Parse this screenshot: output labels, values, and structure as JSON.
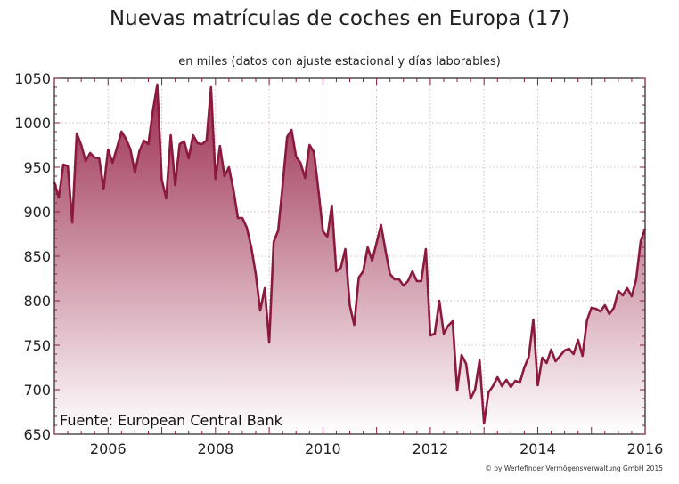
{
  "chart_data": {
    "type": "area",
    "title": "Nuevas matrículas de coches en Europa (17)",
    "subtitle": "en miles (datos con ajuste estacional y días laborables)",
    "source": "Fuente: European Central Bank",
    "copyright": "© by Wertefinder Vermögensverwaltung GmbH 2015",
    "xlim": [
      2005,
      2016
    ],
    "ylim": [
      650,
      1050
    ],
    "yticks": [
      650,
      700,
      750,
      800,
      850,
      900,
      950,
      1000,
      1050
    ],
    "xticks": [
      2006,
      2008,
      2010,
      2012,
      2014,
      2016
    ],
    "grid": true,
    "colors": {
      "line": "#8b1a3d",
      "fill_top": "#9b2b4e",
      "fill_bottom": "#ffffff"
    },
    "series": [
      {
        "x": [
          2005.0,
          2005.083,
          2005.167,
          2005.25,
          2005.333,
          2005.417,
          2005.5,
          2005.583,
          2005.667,
          2005.75,
          2005.833,
          2005.917,
          2006.0,
          2006.083,
          2006.167,
          2006.25,
          2006.333,
          2006.417,
          2006.5,
          2006.583,
          2006.667,
          2006.75,
          2006.833,
          2006.917,
          2007.0,
          2007.083,
          2007.167,
          2007.25,
          2007.333,
          2007.417,
          2007.5,
          2007.583,
          2007.667,
          2007.75,
          2007.833,
          2007.917,
          2008.0,
          2008.083,
          2008.167,
          2008.25,
          2008.333,
          2008.417,
          2008.5,
          2008.583,
          2008.667,
          2008.75,
          2008.833,
          2008.917,
          2009.0,
          2009.083,
          2009.167,
          2009.25,
          2009.333,
          2009.417,
          2009.5,
          2009.583,
          2009.667,
          2009.75,
          2009.833,
          2009.917,
          2010.0,
          2010.083,
          2010.167,
          2010.25,
          2010.333,
          2010.417,
          2010.5,
          2010.583,
          2010.667,
          2010.75,
          2010.833,
          2010.917,
          2011.0,
          2011.083,
          2011.167,
          2011.25,
          2011.333,
          2011.417,
          2011.5,
          2011.583,
          2011.667,
          2011.75,
          2011.833,
          2011.917,
          2012.0,
          2012.083,
          2012.167,
          2012.25,
          2012.333,
          2012.417,
          2012.5,
          2012.583,
          2012.667,
          2012.75,
          2012.833,
          2012.917,
          2013.0,
          2013.083,
          2013.167,
          2013.25,
          2013.333,
          2013.417,
          2013.5,
          2013.583,
          2013.667,
          2013.75,
          2013.833,
          2013.917,
          2014.0,
          2014.083,
          2014.167,
          2014.25,
          2014.333,
          2014.417,
          2014.5,
          2014.583,
          2014.667,
          2014.75,
          2014.833,
          2014.917,
          2015.0,
          2015.083,
          2015.167,
          2015.25,
          2015.333,
          2015.417,
          2015.5,
          2015.583,
          2015.667,
          2015.75,
          2015.833,
          2015.917,
          2016.0
        ],
        "values": [
          933,
          916,
          953,
          951,
          888,
          988,
          975,
          957,
          966,
          961,
          960,
          926,
          970,
          955,
          972,
          990,
          982,
          970,
          944,
          968,
          980,
          976,
          1013,
          1043,
          936,
          915,
          986,
          930,
          976,
          979,
          960,
          986,
          977,
          976,
          980,
          1040,
          937,
          974,
          940,
          950,
          925,
          893,
          893,
          882,
          860,
          830,
          789,
          814,
          753,
          866,
          879,
          930,
          984,
          992,
          962,
          955,
          938,
          975,
          967,
          924,
          878,
          872,
          907,
          833,
          837,
          858,
          795,
          773,
          826,
          833,
          860,
          845,
          865,
          885,
          856,
          830,
          824,
          824,
          817,
          822,
          833,
          822,
          822,
          858,
          761,
          763,
          800,
          763,
          772,
          777,
          699,
          739,
          729,
          690,
          700,
          733,
          662,
          697,
          704,
          714,
          704,
          711,
          703,
          710,
          708,
          725,
          737,
          779,
          705,
          736,
          730,
          745,
          732,
          738,
          744,
          746,
          740,
          756,
          738,
          778,
          792,
          791,
          788,
          795,
          785,
          792,
          811,
          806,
          814,
          805,
          824,
          867,
          881
        ]
      }
    ]
  }
}
